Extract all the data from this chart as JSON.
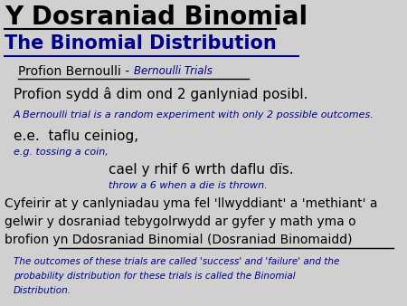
{
  "bg_color": "#d0d0d0",
  "title1": "Y Dosraniad Binomial",
  "title1_color": "#000000",
  "title2": "The Binomial Distribution",
  "title2_color": "#00008B",
  "line1_welsh": "Profion Bernoulli - ",
  "line1_english": "Bernoulli Trials",
  "line1_welsh_color": "#000000",
  "line1_english_color": "#00008B",
  "line2": "Profion sydd â dim ond 2 ganlyniad posibl.",
  "line2_color": "#000000",
  "line3": "A Bernoulli trial is a random experiment with only 2 possible outcomes.",
  "line3_color": "#00008B",
  "line4a": "e.e.  taflu ceiniog,",
  "line4a_color": "#000000",
  "line4b": "e.g. tossing a coin,",
  "line4b_color": "#00008B",
  "line5a": "cael y rhif 6 wrth daflu dïs.",
  "line5a_color": "#000000",
  "line5b": "throw a 6 when a die is thrown.",
  "line5b_color": "#00008B",
  "line6a": "Cyfeirir at y canlyniadau yma fel 'llwyddiant' a 'methiant' a",
  "line6b": "gelwir y dosraniad tebygolrwydd ar gyfer y math yma o",
  "line6c": "brofion yn Ddosraniad Binomial (Dosraniad Binomaidd)",
  "line6_color": "#000000",
  "line7a": "The outcomes of these trials are called 'success' and 'failure' and the",
  "line7b": "probability distribution for these trials is called the Binomial",
  "line7c": "Distribution.",
  "line7_color": "#00008B"
}
